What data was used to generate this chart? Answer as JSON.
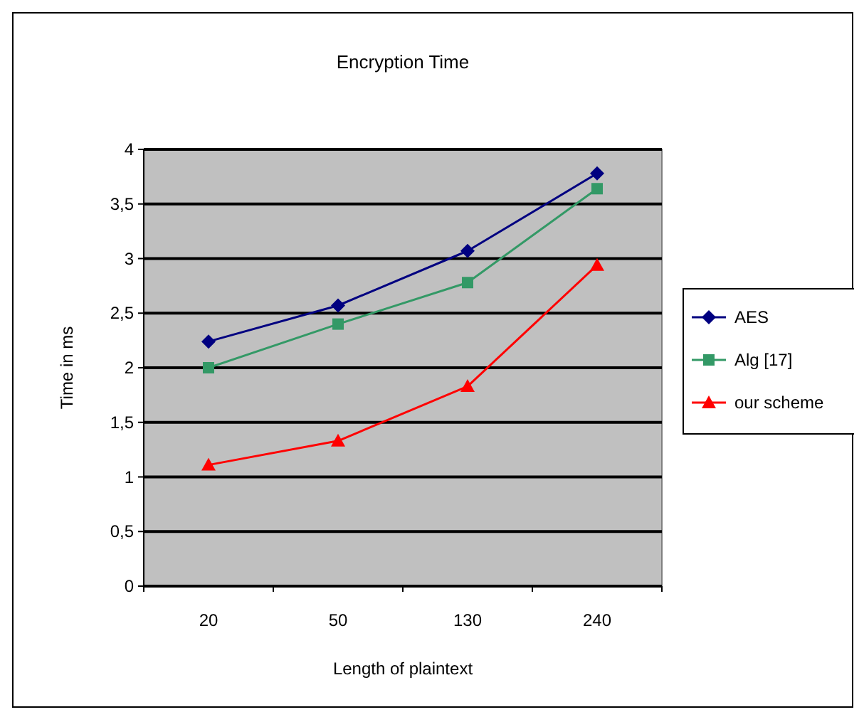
{
  "chart_data": {
    "type": "line",
    "title": "Encryption Time",
    "xlabel": "Length of plaintext",
    "ylabel": "Time in ms",
    "categories": [
      "20",
      "50",
      "130",
      "240"
    ],
    "series": [
      {
        "name": "AES",
        "color": "#000080",
        "marker": "diamond",
        "values": [
          2.24,
          2.57,
          3.07,
          3.78
        ]
      },
      {
        "name": "Alg [17]",
        "color": "#339966",
        "marker": "square",
        "values": [
          2.0,
          2.4,
          2.78,
          3.64
        ]
      },
      {
        "name": "our scheme",
        "color": "#ff0000",
        "marker": "triangle",
        "values": [
          1.11,
          1.33,
          1.83,
          2.94
        ]
      }
    ],
    "ylim": [
      0,
      4
    ],
    "yticks": [
      0,
      {
        "value": 0.5,
        "label": "0,5"
      },
      1,
      {
        "value": 1.5,
        "label": "1,5"
      },
      2,
      {
        "value": 2.5,
        "label": "2,5"
      },
      3,
      {
        "value": 3.5,
        "label": "3,5"
      },
      4
    ],
    "grid": "y",
    "legend": "right",
    "line_style": "solid"
  }
}
